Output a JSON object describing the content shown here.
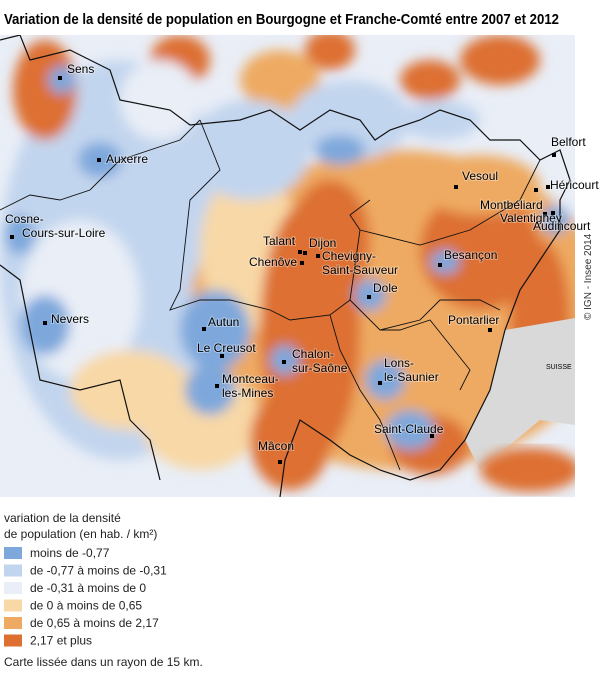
{
  "title": "Variation de la densité de population en Bourgogne et Franche-Comté entre 2007 et 2012",
  "cities": [
    [
      "Sens"
    ],
    [
      "Auxerre"
    ],
    [
      "Cosne-",
      "Cours-sur-Loire"
    ],
    [
      "Nevers"
    ],
    [
      "Autun"
    ],
    [
      "Le Creusot"
    ],
    [
      "Montceau-",
      "les-Mines"
    ],
    [
      "Chalon-",
      "sur-Saône"
    ],
    [
      "Mâcon"
    ],
    [
      "Talant"
    ],
    [
      "Dijon"
    ],
    [
      "Chenôve"
    ],
    [
      "Chevigny-",
      "Saint-Sauveur"
    ],
    [
      "Dole"
    ],
    [
      "Besançon"
    ],
    [
      "Vesoul"
    ],
    [
      "Belfort"
    ],
    [
      "Héricourt"
    ],
    [
      "Montbéliard"
    ],
    [
      "Valentigney"
    ],
    [
      "Audincourt"
    ],
    [
      "Pontarlier"
    ],
    [
      "Lons-",
      "le-Saunier"
    ],
    [
      "Saint-Claude"
    ]
  ],
  "country_label": "SUISSE",
  "credit": "© IGN - Insee 2014",
  "legend": {
    "title": [
      "variation de la densité",
      "de population (en hab. / km²)"
    ],
    "items": [
      {
        "label": "moins de -0,77",
        "color": "#7ea8dc"
      },
      {
        "label": "de -0,77 à moins de -0,31",
        "color": "#c2d5ee"
      },
      {
        "label": "de -0,31 à moins de 0",
        "color": "#e9eef7"
      },
      {
        "label": "de 0 à moins de 0,65",
        "color": "#f8d8a6"
      },
      {
        "label": "de 0,65 à moins de 2,17",
        "color": "#eeaa62"
      },
      {
        "label": "2,17 et plus",
        "color": "#dd7030"
      }
    ]
  },
  "note": "Carte lissée dans un rayon de 15 km."
}
